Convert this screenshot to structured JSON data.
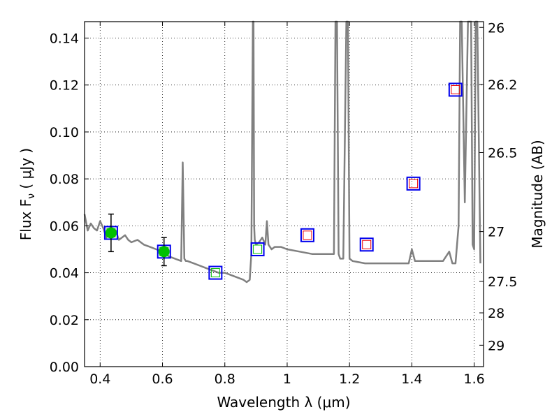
{
  "chart_data": {
    "type": "scatter",
    "xlabel": "Wavelength  λ (μm)",
    "ylabel": "Flux  F",
    "ylabel_sub": "ν",
    "ylabel_unit": "  ( μJy )",
    "y2label": "Magnitude (AB)",
    "xlim": [
      0.35,
      1.63
    ],
    "ylim": [
      0.0,
      0.147
    ],
    "grid": true,
    "x_ticks": [
      0.4,
      0.6,
      0.8,
      1.0,
      1.2,
      1.4,
      1.6
    ],
    "x_tick_labels": [
      "0.4",
      "0.6",
      "0.8",
      "1",
      "1.2",
      "1.4",
      "1.6"
    ],
    "y_ticks": [
      0.0,
      0.02,
      0.04,
      0.06,
      0.08,
      0.1,
      0.12,
      0.14
    ],
    "y_tick_labels": [
      "0.00",
      "0.02",
      "0.04",
      "0.06",
      "0.08",
      "0.10",
      "0.12",
      "0.14"
    ],
    "y2_ticks": [
      "26",
      "26.2",
      "26.5",
      "27",
      "27.5",
      "28",
      "29"
    ],
    "colors": {
      "sed_line": "#808080",
      "observed_point": "#00c000",
      "model_box": "#0000ee",
      "model_optical_inner": "#00c000",
      "model_nir_inner": "#ee0000",
      "error_bar": "#000000"
    },
    "sed_model": {
      "x": [
        0.35,
        0.36,
        0.37,
        0.38,
        0.39,
        0.4,
        0.41,
        0.42,
        0.43,
        0.44,
        0.45,
        0.46,
        0.47,
        0.48,
        0.49,
        0.5,
        0.52,
        0.54,
        0.56,
        0.58,
        0.6,
        0.62,
        0.64,
        0.66,
        0.665,
        0.67,
        0.675,
        0.68,
        0.7,
        0.72,
        0.74,
        0.76,
        0.78,
        0.8,
        0.82,
        0.84,
        0.86,
        0.87,
        0.88,
        0.885,
        0.89,
        0.892,
        0.894,
        0.896,
        0.9,
        0.91,
        0.92,
        0.93,
        0.935,
        0.94,
        0.95,
        0.96,
        0.98,
        1.0,
        1.04,
        1.08,
        1.12,
        1.15,
        1.155,
        1.16,
        1.165,
        1.17,
        1.18,
        1.19,
        1.195,
        1.2,
        1.21,
        1.25,
        1.3,
        1.35,
        1.39,
        1.4,
        1.41,
        1.45,
        1.5,
        1.52,
        1.53,
        1.54,
        1.55,
        1.555,
        1.56,
        1.57,
        1.58,
        1.59,
        1.595,
        1.6,
        1.605,
        1.61,
        1.62
      ],
      "y": [
        0.065,
        0.058,
        0.061,
        0.059,
        0.058,
        0.062,
        0.059,
        0.055,
        0.057,
        0.056,
        0.058,
        0.054,
        0.055,
        0.056,
        0.054,
        0.053,
        0.054,
        0.052,
        0.051,
        0.05,
        0.049,
        0.047,
        0.046,
        0.045,
        0.087,
        0.046,
        0.045,
        0.045,
        0.044,
        0.043,
        0.042,
        0.041,
        0.04,
        0.04,
        0.039,
        0.038,
        0.037,
        0.036,
        0.037,
        0.048,
        0.147,
        0.147,
        0.06,
        0.054,
        0.052,
        0.053,
        0.055,
        0.052,
        0.062,
        0.052,
        0.05,
        0.051,
        0.051,
        0.05,
        0.049,
        0.048,
        0.048,
        0.048,
        0.147,
        0.147,
        0.048,
        0.046,
        0.046,
        0.147,
        0.147,
        0.046,
        0.045,
        0.044,
        0.044,
        0.044,
        0.044,
        0.05,
        0.045,
        0.045,
        0.045,
        0.049,
        0.044,
        0.044,
        0.06,
        0.147,
        0.147,
        0.07,
        0.147,
        0.147,
        0.052,
        0.05,
        0.147,
        0.147,
        0.044
      ]
    },
    "observed": {
      "x": [
        0.435,
        0.605
      ],
      "y": [
        0.057,
        0.049
      ],
      "yerr": [
        0.008,
        0.006
      ]
    },
    "model_optical": {
      "x": [
        0.435,
        0.605,
        0.77,
        0.905
      ],
      "y": [
        0.057,
        0.049,
        0.04,
        0.05
      ]
    },
    "model_nir": {
      "x": [
        1.065,
        1.255,
        1.405,
        1.54
      ],
      "y": [
        0.056,
        0.052,
        0.078,
        0.118
      ]
    }
  }
}
